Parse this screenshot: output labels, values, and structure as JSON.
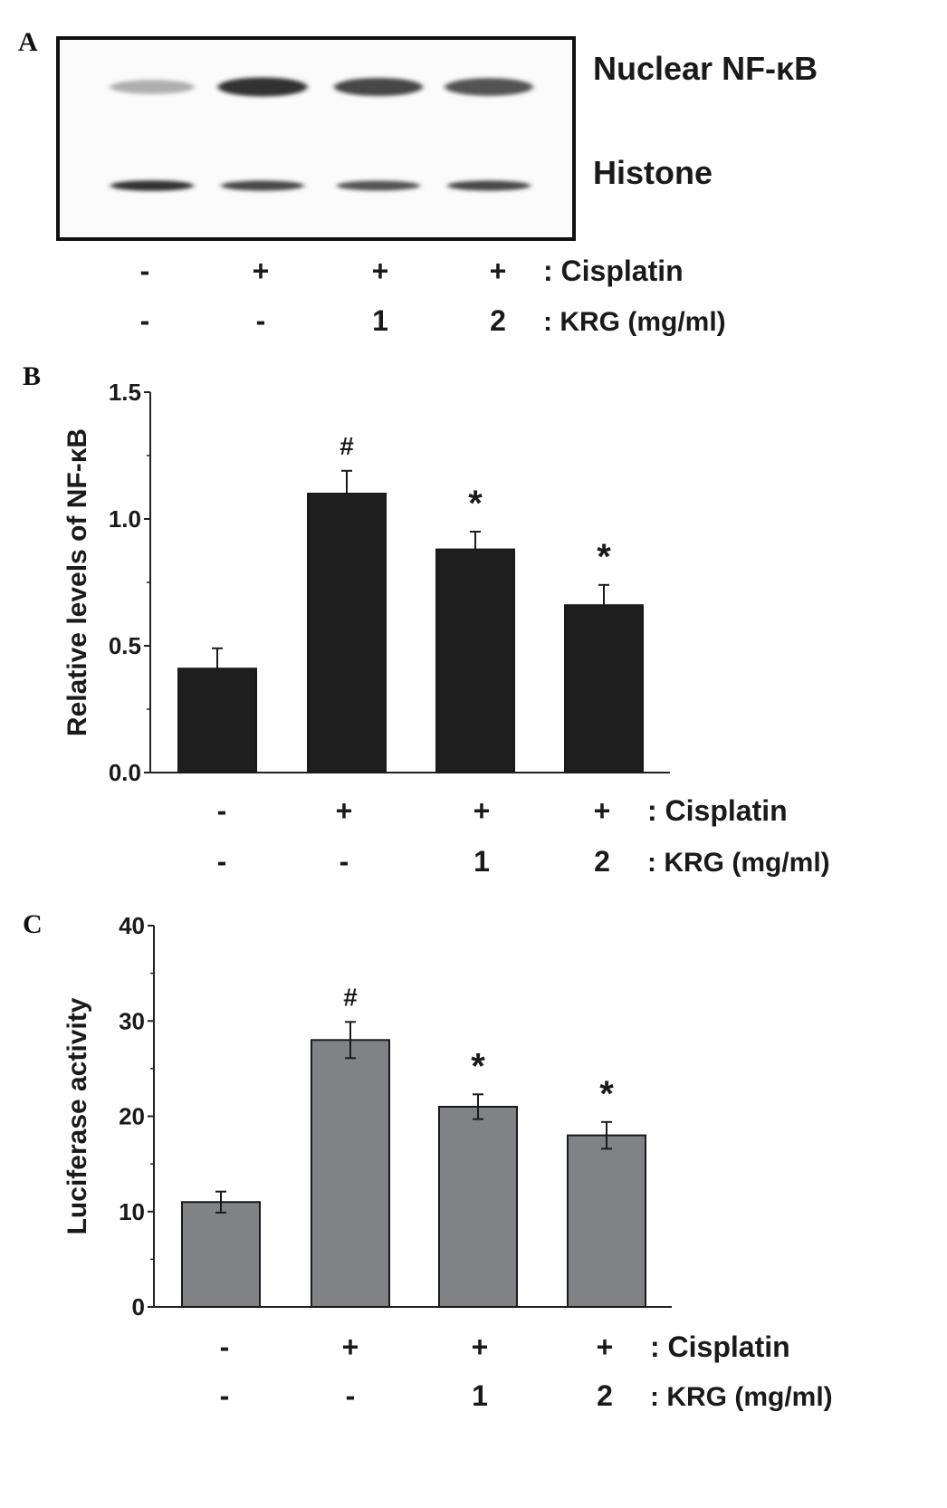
{
  "panel_labels": [
    "A",
    "B",
    "C"
  ],
  "blot": {
    "band_labels": [
      "Nuclear NF-κB",
      "Histone"
    ],
    "nfkb_intensity": [
      0.35,
      0.9,
      0.8,
      0.75
    ],
    "histone_intensity": [
      0.9,
      0.8,
      0.75,
      0.8
    ]
  },
  "treatments": {
    "cisplatin": [
      "-",
      "+",
      "+",
      "+"
    ],
    "krg": [
      "-",
      "-",
      "1",
      "2"
    ],
    "cisplatin_label": ": Cisplatin",
    "krg_label": ": KRG (mg/ml)"
  },
  "chart_data": [
    {
      "type": "bar",
      "panel": "B",
      "ylabel": "Relative levels of NF-κB",
      "ylim": [
        0,
        1.5
      ],
      "yticks": [
        "0.0",
        "0.5",
        "1.0",
        "1.5"
      ],
      "categories": [
        "- / -",
        "+ / -",
        "+ / 1",
        "+ / 2"
      ],
      "values": [
        0.41,
        1.1,
        0.88,
        0.66
      ],
      "errors": [
        0.08,
        0.09,
        0.07,
        0.08
      ],
      "annotations": [
        "",
        "#",
        "*",
        "*"
      ],
      "bar_color": "#1e1e1e"
    },
    {
      "type": "bar",
      "panel": "C",
      "ylabel": "Luciferase activity",
      "ylim": [
        0,
        40
      ],
      "yticks": [
        "0",
        "10",
        "20",
        "30",
        "40"
      ],
      "categories": [
        "- / -",
        "+ / -",
        "+ / 1",
        "+ / 2"
      ],
      "values": [
        11,
        28,
        21,
        18
      ],
      "errors": [
        1.1,
        1.9,
        1.3,
        1.4
      ],
      "annotations": [
        "",
        "#",
        "*",
        "*"
      ],
      "bar_color": "#808285"
    }
  ]
}
